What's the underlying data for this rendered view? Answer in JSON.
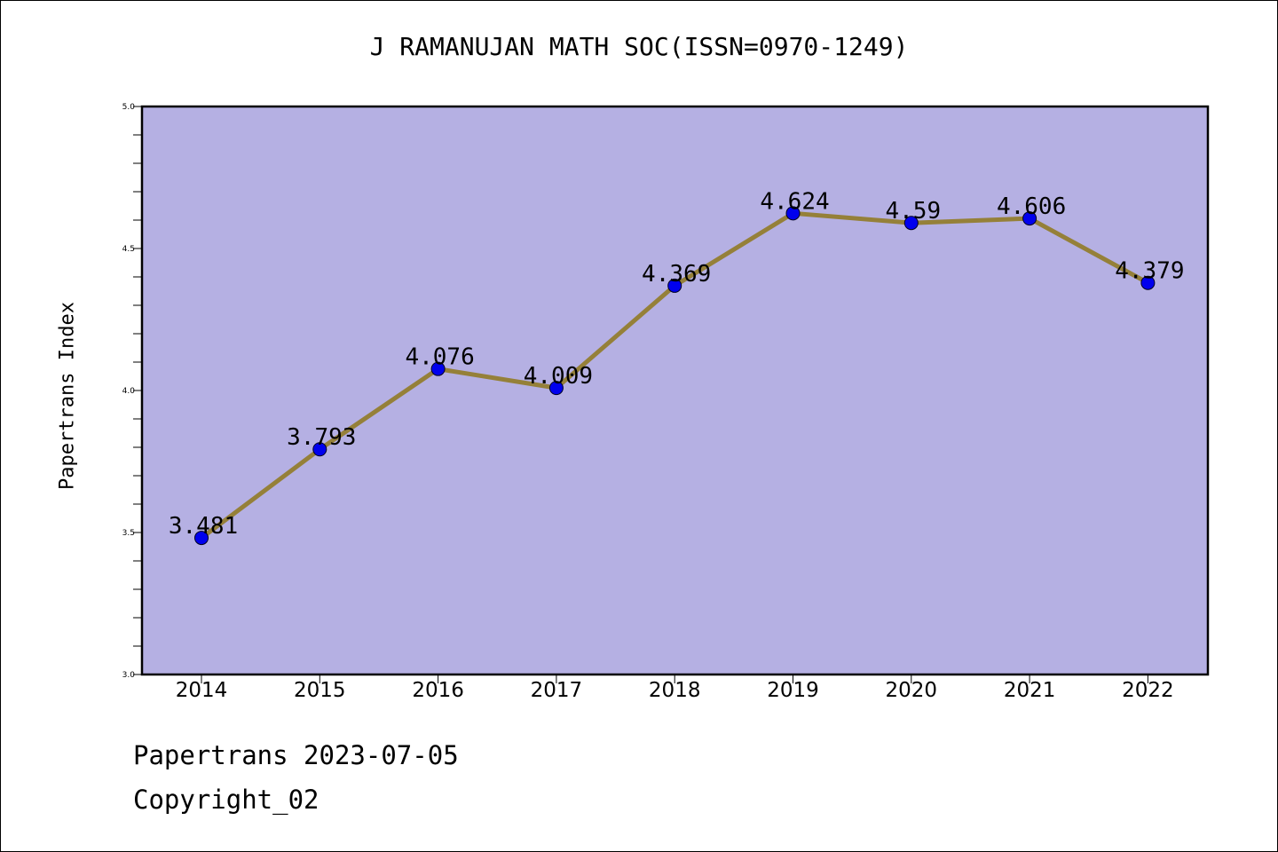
{
  "chart_data": {
    "type": "line",
    "title": "J RAMANUJAN MATH SOC(ISSN=0970-1249)",
    "xlabel": "",
    "ylabel": "Papertrans Index",
    "categories": [
      "2014",
      "2015",
      "2016",
      "2017",
      "2018",
      "2019",
      "2020",
      "2021",
      "2022"
    ],
    "series": [
      {
        "values": [
          3.481,
          3.793,
          4.076,
          4.009,
          4.369,
          4.624,
          4.59,
          4.606,
          4.379
        ]
      }
    ],
    "data_labels": [
      "3.481",
      "3.793",
      "4.076",
      "4.009",
      "4.369",
      "4.624",
      "4.59",
      "4.606",
      "4.379"
    ],
    "ylim": [
      3.0,
      5.0
    ],
    "yticks": [
      "3.0",
      "3.5",
      "4.0",
      "4.5",
      "5.0"
    ],
    "grid": false,
    "colors": {
      "plot_background": "#b5b0e3",
      "line": "#958039",
      "marker": "#0000ee"
    }
  },
  "footer": {
    "line1": "Papertrans 2023-07-05",
    "line2": "Copyright_02"
  }
}
